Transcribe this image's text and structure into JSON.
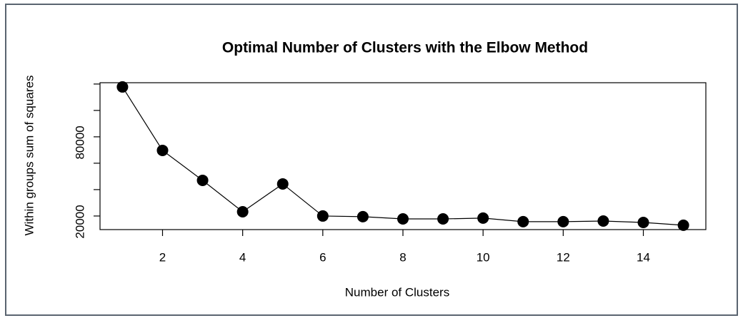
{
  "chart_data": {
    "type": "line",
    "title": "Optimal Number of Clusters with the Elbow Method",
    "xlabel": "Number of Clusters",
    "ylabel": "Within groups sum of squares",
    "x": [
      1,
      2,
      3,
      4,
      5,
      6,
      7,
      8,
      9,
      10,
      11,
      12,
      13,
      14,
      15
    ],
    "values": [
      117800,
      69700,
      47000,
      23200,
      44300,
      20000,
      19500,
      17800,
      17800,
      18400,
      15700,
      15700,
      16200,
      15100,
      13000
    ],
    "color": "#000000",
    "xlim": [
      0.44,
      15.56
    ],
    "xticks": [
      2,
      4,
      6,
      8,
      10,
      12,
      14
    ],
    "ylim": [
      9700,
      121000
    ],
    "yticks": [
      20000,
      40000,
      60000,
      80000,
      100000,
      120000
    ],
    "yticks_labeled": [
      20000,
      80000
    ]
  }
}
